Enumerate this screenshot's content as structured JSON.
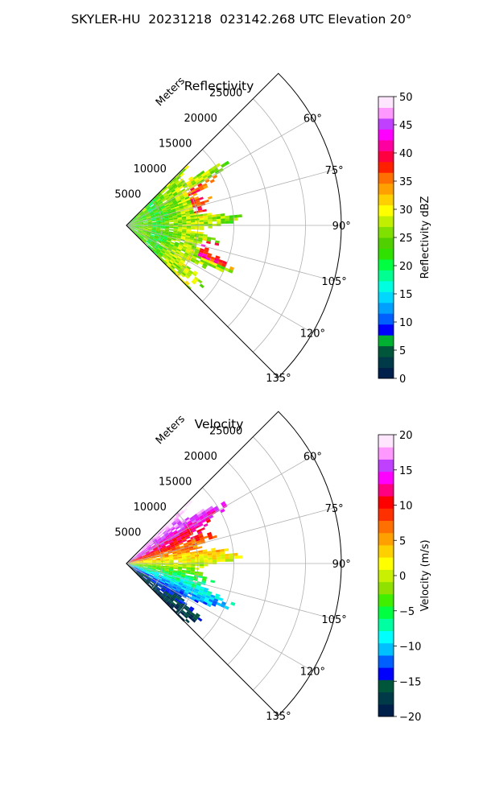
{
  "figure": {
    "title": "SKYLER-HU  20231218  023142.268 UTC Elevation 20°"
  },
  "chart_data": [
    {
      "type": "heatmap",
      "projection": "polar-sector",
      "title": "Reflectivity",
      "radial_axis_label": "Meters",
      "radial_ticks": [
        5000,
        10000,
        15000,
        20000,
        25000
      ],
      "radial_tick_labels": [
        "5000",
        "10000",
        "15000",
        "20000",
        "25000"
      ],
      "rlim": [
        0,
        30000
      ],
      "azimuth_range_deg": [
        45,
        135
      ],
      "azimuth_ticks": [
        60,
        75,
        90,
        105,
        120,
        135
      ],
      "azimuth_tick_labels": [
        "60°",
        "75°",
        "90°",
        "105°",
        "120°",
        "135°"
      ],
      "grid": true,
      "colorbar": {
        "label": "Reflectivity dBZ",
        "range": [
          0,
          50
        ],
        "ticks": [
          0,
          5,
          10,
          15,
          20,
          25,
          30,
          35,
          40,
          45,
          50
        ],
        "tick_labels": [
          "0",
          "5",
          "10",
          "15",
          "20",
          "25",
          "30",
          "35",
          "40",
          "45",
          "50"
        ],
        "colors": [
          "#00204c",
          "#003a48",
          "#00563a",
          "#00b030",
          "#0000ff",
          "#0060ff",
          "#00a0ff",
          "#00d8ff",
          "#00ffe0",
          "#00ff90",
          "#00ff40",
          "#30e000",
          "#50d000",
          "#80e000",
          "#c0f000",
          "#ffff00",
          "#ffd000",
          "#ffa000",
          "#ff7000",
          "#ff2000",
          "#ff0040",
          "#ff00a0",
          "#ff00ff",
          "#c040ff",
          "#ff99ff",
          "#ffe6ff"
        ]
      },
      "echo_extent_m": [
        0,
        17000
      ],
      "approx_values": {
        "near_range_dbz": 25,
        "core_max_dbz": 40,
        "outer_edge_dbz": 15
      }
    },
    {
      "type": "heatmap",
      "projection": "polar-sector",
      "title": "Velocity",
      "radial_axis_label": "Meters",
      "radial_ticks": [
        5000,
        10000,
        15000,
        20000,
        25000
      ],
      "radial_tick_labels": [
        "5000",
        "10000",
        "15000",
        "20000",
        "25000"
      ],
      "rlim": [
        0,
        30000
      ],
      "azimuth_range_deg": [
        45,
        135
      ],
      "azimuth_ticks": [
        60,
        75,
        90,
        105,
        120,
        135
      ],
      "azimuth_tick_labels": [
        "60°",
        "75°",
        "90°",
        "105°",
        "120°",
        "135°"
      ],
      "grid": true,
      "colorbar": {
        "label": "Velocity (m/s)",
        "range": [
          -20,
          20
        ],
        "ticks": [
          -20,
          -15,
          -10,
          -5,
          0,
          5,
          10,
          15,
          20
        ],
        "tick_labels": [
          "−20",
          "−15",
          "−10",
          "−5",
          "0",
          "5",
          "10",
          "15",
          "20"
        ],
        "colors": [
          "#00204c",
          "#003a48",
          "#00563a",
          "#0000ff",
          "#0060ff",
          "#00c0ff",
          "#00ffff",
          "#00ffa0",
          "#00ff40",
          "#40ee00",
          "#90e000",
          "#c8f000",
          "#ffff00",
          "#ffd000",
          "#ffa000",
          "#ff7000",
          "#ff3000",
          "#ff0000",
          "#ff0080",
          "#ff00ff",
          "#c040ff",
          "#ff99ff",
          "#ffe6ff"
        ]
      },
      "echo_extent_m": [
        0,
        17000
      ],
      "approx_values": {
        "north_sector_ms": 12,
        "center_ms": 0,
        "south_sector_ms": -12
      }
    }
  ]
}
